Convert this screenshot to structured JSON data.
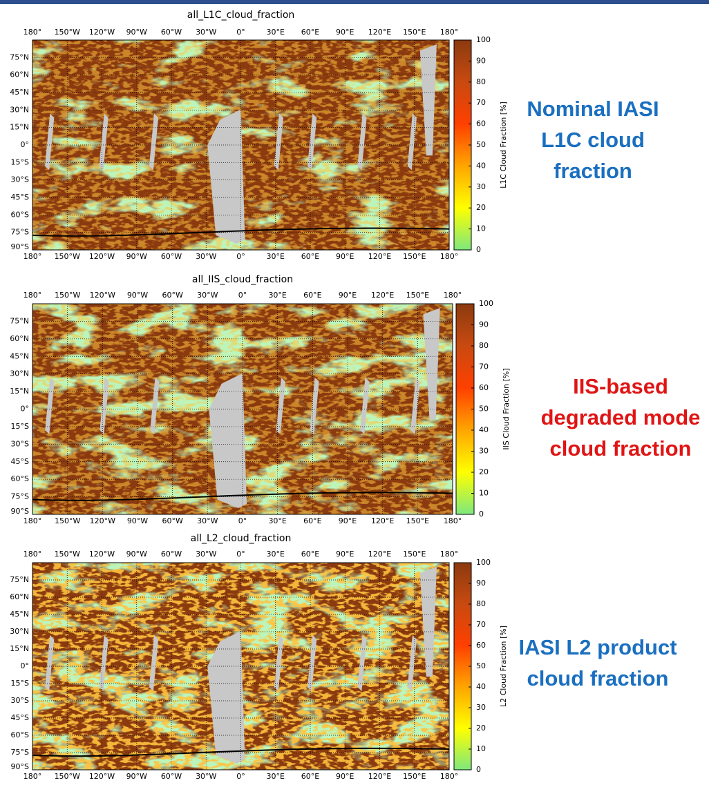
{
  "lon_labels": [
    "180°",
    "150°W",
    "120°W",
    "90°W",
    "60°W",
    "30°W",
    "0°",
    "30°E",
    "60°E",
    "90°E",
    "120°E",
    "150°E",
    "180°"
  ],
  "lat_labels": [
    "75°N",
    "60°N",
    "45°N",
    "30°N",
    "15°N",
    "0°",
    "15°S",
    "30°S",
    "45°S",
    "60°S",
    "75°S",
    "90°S"
  ],
  "colormap": [
    "#7ee87e",
    "#ffff00",
    "#ffa500",
    "#ff4000",
    "#c84a10",
    "#8b3a0f"
  ],
  "panels": [
    {
      "title": "all_L1C_cloud_fraction",
      "colorbar_label": "L1C Cloud Fraction [%]",
      "colorbar": {
        "lim": [
          0,
          100
        ],
        "ticks": [
          0,
          10,
          20,
          30,
          40,
          50,
          60,
          70,
          80,
          90,
          100
        ]
      },
      "caption": [
        "Nominal IASI",
        "L1C cloud",
        "fraction"
      ],
      "caption_color": "#1a6fc0"
    },
    {
      "title": "all_IIS_cloud_fraction",
      "colorbar_label": "IIS Cloud Fraction [%]",
      "colorbar": {
        "lim": [
          0,
          100
        ],
        "ticks": [
          0,
          10,
          20,
          30,
          40,
          50,
          60,
          70,
          80,
          90,
          100
        ]
      },
      "caption": [
        "IIS-based",
        "degraded mode",
        "cloud fraction"
      ],
      "caption_color": "#e01414"
    },
    {
      "title": "all_L2_cloud_fraction",
      "colorbar_label": "L2 Cloud Fraction [%]",
      "colorbar": {
        "lim": [
          0,
          100
        ],
        "ticks": [
          0,
          10,
          20,
          30,
          40,
          50,
          60,
          70,
          80,
          90,
          100
        ]
      },
      "caption": [
        "IASI L2 product",
        "cloud fraction"
      ],
      "caption_color": "#1a6fc0"
    }
  ]
}
